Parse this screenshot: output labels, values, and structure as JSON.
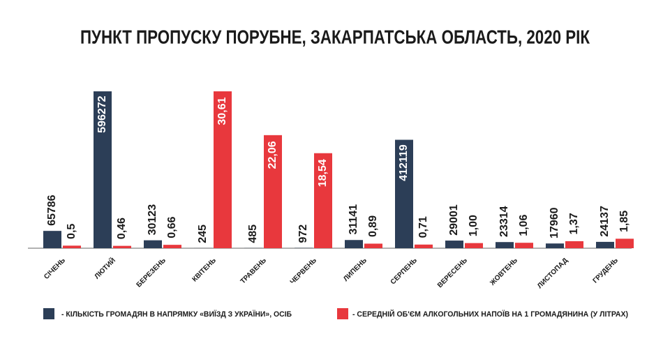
{
  "chart_data": {
    "type": "bar",
    "title": "ПУНКТ ПРОПУСКУ ПОРУБНЕ, ЗАКАРПАТСЬКА ОБЛАСТЬ, 2020 РІК",
    "categories": [
      "СІЧЕНЬ",
      "ЛЮТИЙ",
      "БЕРЕЗЕНЬ",
      "КВІТЕНЬ",
      "ТРАВЕНЬ",
      "ЧЕРВЕНЬ",
      "ЛИПЕНЬ",
      "СЕРПЕНЬ",
      "ВЕРЕСЕНЬ",
      "ЖОВТЕНЬ",
      "ЛИСТОПАД",
      "ГРУДЕНЬ"
    ],
    "series": [
      {
        "name": "- КІЛЬКІСТЬ ГРОМАДЯН В НАПРЯМКУ «ВИЇЗД З УКРАЇНИ», ОСІБ",
        "color": "#2c3e57",
        "values": [
          65786,
          596272,
          30123,
          245,
          485,
          972,
          31141,
          412119,
          29001,
          23314,
          17960,
          24137
        ]
      },
      {
        "name": "- СЕРЕДНІЙ ОБ'ЄМ АЛКОГОЛЬНИХ НАПОЇВ НА 1 ГРОМАДЯНИНА (У ЛІТРАХ)",
        "color": "#e8383d",
        "values": [
          0.5,
          0.46,
          0.66,
          30.61,
          22.06,
          18.54,
          0.89,
          0.71,
          1.0,
          1.06,
          1.37,
          1.85
        ],
        "value_labels": [
          "0,5",
          "0,46",
          "0,66",
          "30,61",
          "22,06",
          "18,54",
          "0,89",
          "0,71",
          "1,00",
          "1,06",
          "1,37",
          "1,85"
        ]
      }
    ]
  }
}
